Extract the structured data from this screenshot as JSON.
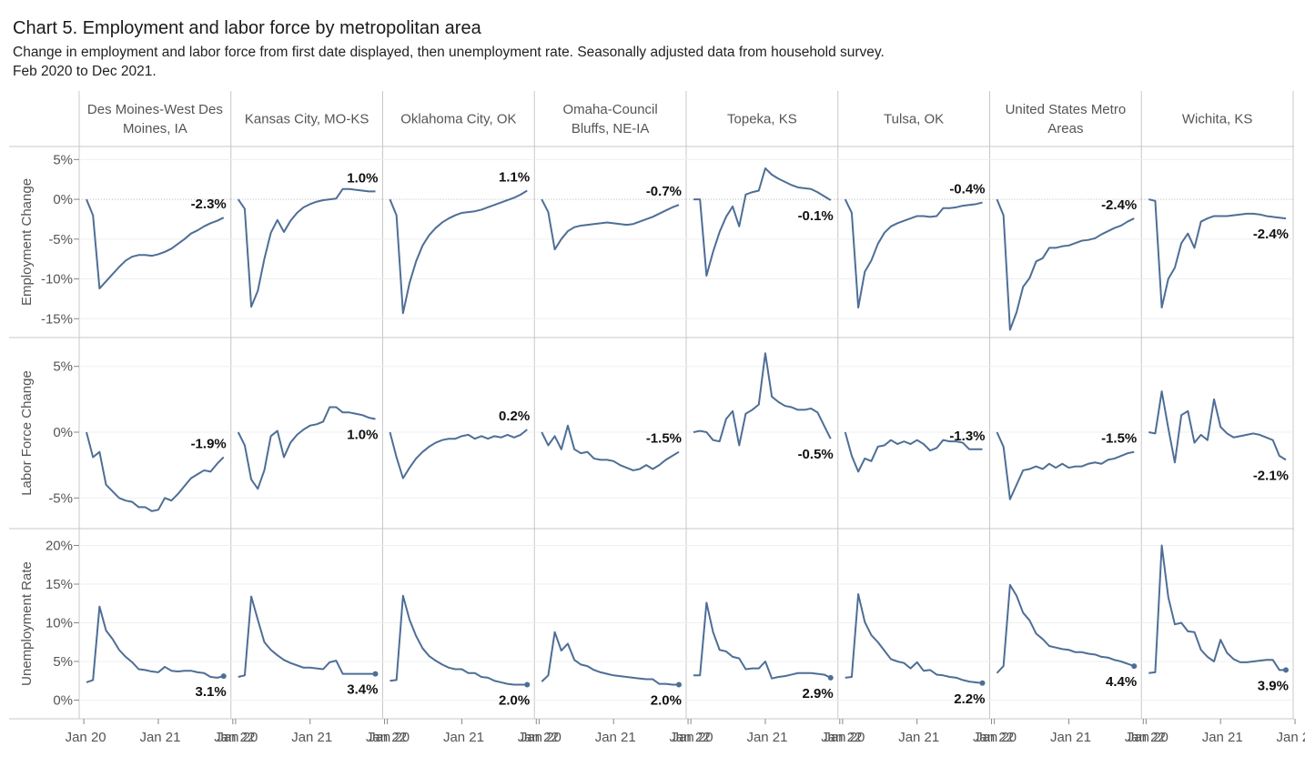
{
  "title": "Chart 5. Employment and labor force by metropolitan area",
  "subtitle_line1": "Change in employment and labor force from first date displayed, then unemployment rate. Seasonally adjusted data from household survey.",
  "subtitle_line2": "Feb 2020 to Dec 2021.",
  "line_color": "#4e6e96",
  "chart_data": {
    "type": "line",
    "columns": [
      "Des Moines-West Des Moines, IA",
      "Kansas City, MO-KS",
      "Oklahoma City, OK",
      "Omaha-Council Bluffs, NE-IA",
      "Topeka, KS",
      "Tulsa, OK",
      "United States Metro Areas",
      "Wichita, KS"
    ],
    "rows": [
      {
        "label": "Employment Change",
        "ylim": [
          -16,
          5.5
        ],
        "ticks": [
          5,
          0,
          -5,
          -10,
          -15
        ],
        "tick_labels": [
          "5%",
          "0%",
          "-5%",
          "-10%",
          "-15%"
        ],
        "zero_line": true
      },
      {
        "label": "Labor Force Change",
        "ylim": [
          -6.5,
          6.5
        ],
        "ticks": [
          5,
          0,
          -5
        ],
        "tick_labels": [
          "5%",
          "0%",
          "-5%"
        ],
        "zero_line": false
      },
      {
        "label": "Unemployment Rate",
        "ylim": [
          -1,
          21
        ],
        "ticks": [
          20,
          15,
          10,
          5,
          0
        ],
        "tick_labels": [
          "20%",
          "15%",
          "10%",
          "5%",
          "0%"
        ],
        "zero_line": false
      }
    ],
    "x_tick_labels": [
      "Jan 20",
      "Jan 21",
      "Jan 22"
    ],
    "series": {
      "employment": [
        [
          0,
          -2,
          -11.2,
          -10.3,
          -9.4,
          -8.5,
          -7.7,
          -7.2,
          -7.0,
          -7.0,
          -7.1,
          -6.9,
          -6.6,
          -6.2,
          -5.6,
          -5.0,
          -4.3,
          -3.9,
          -3.4,
          -3.0,
          -2.7,
          -2.3
        ],
        [
          0,
          -1.2,
          -13.5,
          -11.5,
          -7.5,
          -4.2,
          -2.6,
          -4.1,
          -2.7,
          -1.7,
          -1.0,
          -0.6,
          -0.3,
          -0.1,
          0.0,
          0.1,
          1.3,
          1.3,
          1.2,
          1.1,
          1.0,
          1.0
        ],
        [
          0,
          -2,
          -14.3,
          -10.5,
          -7.8,
          -5.8,
          -4.5,
          -3.6,
          -2.9,
          -2.4,
          -2.0,
          -1.7,
          -1.6,
          -1.5,
          -1.3,
          -1.0,
          -0.7,
          -0.4,
          -0.1,
          0.2,
          0.6,
          1.1
        ],
        [
          0,
          -1.6,
          -6.3,
          -5.0,
          -4.0,
          -3.5,
          -3.3,
          -3.2,
          -3.1,
          -3.0,
          -2.9,
          -3.0,
          -3.1,
          -3.2,
          -3.1,
          -2.8,
          -2.5,
          -2.2,
          -1.8,
          -1.4,
          -1.0,
          -0.7
        ],
        [
          0,
          0,
          -9.6,
          -6.6,
          -4.1,
          -2.2,
          -0.9,
          -3.4,
          0.6,
          0.9,
          1.1,
          3.9,
          3.1,
          2.6,
          2.2,
          1.8,
          1.5,
          1.4,
          1.3,
          0.9,
          0.4,
          -0.1
        ],
        [
          0,
          -1.7,
          -13.6,
          -9.1,
          -7.7,
          -5.6,
          -4.2,
          -3.4,
          -3.0,
          -2.7,
          -2.4,
          -2.1,
          -2.1,
          -2.2,
          -2.1,
          -1.1,
          -1.1,
          -1.0,
          -0.8,
          -0.7,
          -0.6,
          -0.4
        ],
        [
          0,
          -2,
          -16.4,
          -14.2,
          -11.0,
          -9.9,
          -7.8,
          -7.4,
          -6.1,
          -6.1,
          -5.9,
          -5.8,
          -5.5,
          -5.2,
          -5.1,
          -4.9,
          -4.4,
          -4.0,
          -3.6,
          -3.3,
          -2.8,
          -2.4
        ],
        [
          0,
          -0.2,
          -13.6,
          -10.0,
          -8.6,
          -5.5,
          -4.3,
          -6.1,
          -2.8,
          -2.4,
          -2.1,
          -2.1,
          -2.1,
          -2.0,
          -1.9,
          -1.8,
          -1.8,
          -1.9,
          -2.1,
          -2.2,
          -2.3,
          -2.4
        ]
      ],
      "labor_force": [
        [
          0,
          -1.9,
          -1.5,
          -4.0,
          -4.5,
          -5.0,
          -5.2,
          -5.3,
          -5.7,
          -5.7,
          -6.0,
          -5.9,
          -5.0,
          -5.2,
          -4.7,
          -4.1,
          -3.5,
          -3.2,
          -2.9,
          -3.0,
          -2.4,
          -1.9
        ],
        [
          0,
          -1.0,
          -3.6,
          -4.3,
          -2.9,
          -0.3,
          0.1,
          -1.9,
          -0.8,
          -0.2,
          0.2,
          0.5,
          0.6,
          0.8,
          1.9,
          1.9,
          1.5,
          1.5,
          1.4,
          1.3,
          1.1,
          1.0
        ],
        [
          0,
          -1.9,
          -3.5,
          -2.7,
          -2.0,
          -1.5,
          -1.1,
          -0.8,
          -0.6,
          -0.5,
          -0.5,
          -0.3,
          -0.2,
          -0.5,
          -0.3,
          -0.5,
          -0.3,
          -0.4,
          -0.2,
          -0.4,
          -0.2,
          0.2
        ],
        [
          0,
          -1.0,
          -0.3,
          -1.3,
          0.5,
          -1.3,
          -1.6,
          -1.5,
          -2.0,
          -2.1,
          -2.1,
          -2.2,
          -2.5,
          -2.7,
          -2.9,
          -2.8,
          -2.5,
          -2.8,
          -2.5,
          -2.1,
          -1.8,
          -1.5
        ],
        [
          0,
          0.1,
          0,
          -0.6,
          -0.7,
          1.0,
          1.6,
          -1.0,
          1.4,
          1.7,
          2.1,
          6.0,
          2.7,
          2.3,
          2.0,
          1.9,
          1.7,
          1.7,
          1.8,
          1.5,
          0.5,
          -0.5
        ],
        [
          0,
          -1.8,
          -3.0,
          -2.0,
          -2.2,
          -1.1,
          -1.0,
          -0.6,
          -0.9,
          -0.7,
          -0.9,
          -0.6,
          -0.9,
          -1.4,
          -1.2,
          -0.6,
          -0.7,
          -0.7,
          -0.8,
          -1.3,
          -1.3,
          -1.3
        ],
        [
          0,
          -1.1,
          -5.1,
          -4.0,
          -2.9,
          -2.8,
          -2.6,
          -2.8,
          -2.4,
          -2.7,
          -2.4,
          -2.7,
          -2.6,
          -2.6,
          -2.4,
          -2.3,
          -2.4,
          -2.1,
          -2.0,
          -1.8,
          -1.6,
          -1.5
        ],
        [
          0,
          -0.1,
          3.1,
          0.3,
          -2.3,
          1.3,
          1.6,
          -0.8,
          -0.2,
          -0.6,
          2.5,
          0.4,
          -0.1,
          -0.4,
          -0.3,
          -0.2,
          -0.1,
          -0.2,
          -0.4,
          -0.6,
          -1.8,
          -2.1
        ]
      ],
      "unemployment": [
        [
          2.3,
          2.6,
          12.1,
          9.0,
          7.9,
          6.5,
          5.6,
          4.9,
          4.0,
          3.9,
          3.7,
          3.6,
          4.3,
          3.8,
          3.7,
          3.8,
          3.8,
          3.6,
          3.5,
          3.0,
          2.9,
          3.1
        ],
        [
          3.0,
          3.2,
          13.4,
          10.4,
          7.5,
          6.5,
          5.8,
          5.2,
          4.8,
          4.5,
          4.2,
          4.2,
          4.1,
          4.0,
          4.9,
          5.1,
          3.4,
          3.4,
          3.4,
          3.4,
          3.4,
          3.4
        ],
        [
          2.5,
          2.6,
          13.5,
          10.4,
          8.3,
          6.7,
          5.7,
          5.1,
          4.6,
          4.2,
          4.0,
          4.0,
          3.5,
          3.5,
          3.0,
          2.9,
          2.5,
          2.3,
          2.1,
          2.0,
          2.0,
          2.0
        ],
        [
          2.4,
          3.2,
          8.8,
          6.4,
          7.3,
          5.2,
          4.6,
          4.4,
          3.9,
          3.6,
          3.4,
          3.2,
          3.1,
          3.0,
          2.9,
          2.8,
          2.7,
          2.7,
          2.1,
          2.1,
          2.0,
          2.0
        ],
        [
          3.2,
          3.2,
          12.6,
          8.8,
          6.5,
          6.3,
          5.6,
          5.4,
          4.0,
          4.1,
          4.1,
          5.0,
          2.8,
          3.0,
          3.1,
          3.3,
          3.5,
          3.5,
          3.5,
          3.4,
          3.3,
          2.9
        ],
        [
          2.9,
          3.0,
          13.7,
          10.1,
          8.4,
          7.5,
          6.4,
          5.3,
          5.0,
          4.8,
          4.1,
          4.9,
          3.8,
          3.9,
          3.3,
          3.2,
          3.0,
          2.9,
          2.6,
          2.4,
          2.3,
          2.2
        ],
        [
          3.5,
          4.4,
          14.9,
          13.5,
          11.3,
          10.3,
          8.6,
          7.9,
          7.0,
          6.8,
          6.6,
          6.5,
          6.2,
          6.2,
          6.0,
          5.9,
          5.6,
          5.5,
          5.2,
          5.0,
          4.7,
          4.4
        ],
        [
          3.5,
          3.6,
          20.0,
          13.3,
          9.8,
          10.0,
          8.9,
          8.8,
          6.5,
          5.6,
          5.0,
          7.8,
          6.1,
          5.3,
          4.9,
          4.9,
          5.0,
          5.1,
          5.2,
          5.2,
          3.9,
          3.9
        ]
      ]
    },
    "end_labels": {
      "employment": [
        "-2.3%",
        "1.0%",
        "1.1%",
        "-0.7%",
        "-0.1%",
        "-0.4%",
        "-2.4%",
        "-2.4%"
      ],
      "labor_force": [
        "-1.9%",
        "1.0%",
        "0.2%",
        "-1.5%",
        "-0.5%",
        "-1.3%",
        "-1.5%",
        "-2.1%"
      ],
      "unemployment": [
        "3.1%",
        "3.4%",
        "2.0%",
        "2.0%",
        "2.9%",
        "2.2%",
        "4.4%",
        "3.9%"
      ]
    },
    "grid": true
  }
}
